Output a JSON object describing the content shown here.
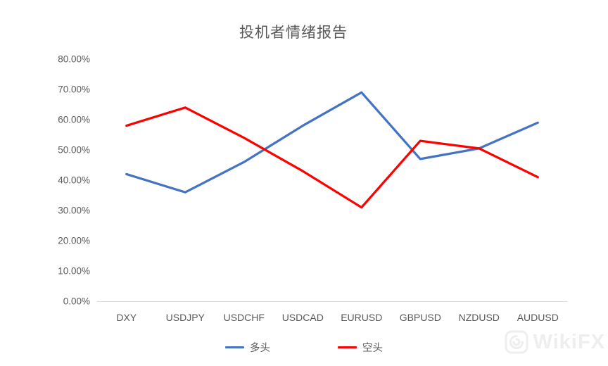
{
  "title": "投机者情绪报告",
  "chart_data": {
    "type": "line",
    "title": "投机者情绪报告",
    "categories": [
      "DXY",
      "USDJPY",
      "USDCHF",
      "USDCAD",
      "EURUSD",
      "GBPUSD",
      "NZDUSD",
      "AUDUSD"
    ],
    "series": [
      {
        "name": "多头",
        "color": "#4472C4",
        "values": [
          42,
          36,
          46,
          58,
          69,
          47,
          50.5,
          59
        ]
      },
      {
        "name": "空头",
        "color": "#FE0000",
        "values": [
          58,
          64,
          54,
          43,
          31,
          53,
          50.5,
          41
        ]
      }
    ],
    "xlabel": "",
    "ylabel": "",
    "ylim": [
      0,
      80
    ],
    "ytick_step": 10,
    "yticks": [
      "0.00%",
      "10.00%",
      "20.00%",
      "30.00%",
      "40.00%",
      "50.00%",
      "60.00%",
      "70.00%",
      "80.00%"
    ],
    "grid": false,
    "legend_position": "bottom"
  },
  "watermark": {
    "text": "WikiFX"
  },
  "colors": {
    "axis_line": "#d9d9d9",
    "label_text": "#595959"
  }
}
